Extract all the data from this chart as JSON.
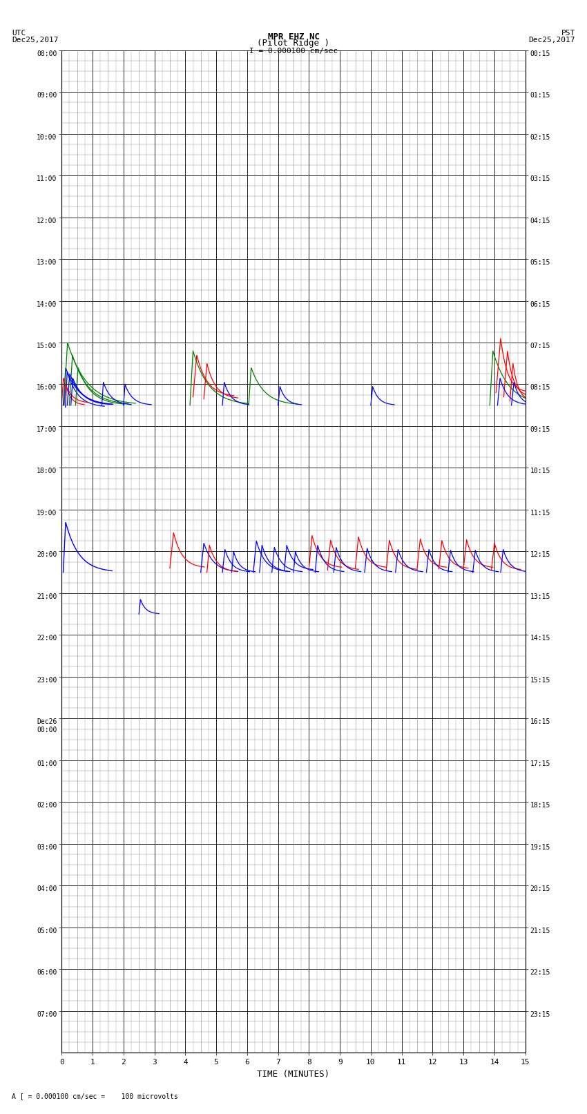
{
  "title_line1": "MPR EHZ NC",
  "title_line2": "(Pilot Ridge )",
  "scale_label": "I = 0.000100 cm/sec",
  "utc_label": "UTC",
  "utc_date": "Dec25,2017",
  "pst_label": "PST",
  "pst_date": "Dec25,2017",
  "bottom_label": "A [ = 0.000100 cm/sec =    100 microvolts",
  "xlabel": "TIME (MINUTES)",
  "xlim": [
    0,
    15
  ],
  "xticks": [
    0,
    1,
    2,
    3,
    4,
    5,
    6,
    7,
    8,
    9,
    10,
    11,
    12,
    13,
    14,
    15
  ],
  "left_yticks_labels": [
    "08:00",
    "09:00",
    "10:00",
    "11:00",
    "12:00",
    "13:00",
    "14:00",
    "15:00",
    "16:00",
    "17:00",
    "18:00",
    "19:00",
    "20:00",
    "21:00",
    "22:00",
    "23:00",
    "Dec26\n00:00",
    "01:00",
    "02:00",
    "03:00",
    "04:00",
    "05:00",
    "06:00",
    "07:00"
  ],
  "right_yticks_labels": [
    "00:15",
    "01:15",
    "02:15",
    "03:15",
    "04:15",
    "05:15",
    "06:15",
    "07:15",
    "08:15",
    "09:15",
    "10:15",
    "11:15",
    "12:15",
    "13:15",
    "14:15",
    "15:15",
    "16:15",
    "17:15",
    "18:15",
    "19:15",
    "20:15",
    "21:15",
    "22:15",
    "23:15"
  ],
  "n_rows": 24,
  "fig_width": 8.5,
  "fig_height": 16.13,
  "bg_color": "#ffffff",
  "grid_major_color": "#000000",
  "grid_minor_color": "#888888",
  "grid_sub_color": "#bbbbbb"
}
